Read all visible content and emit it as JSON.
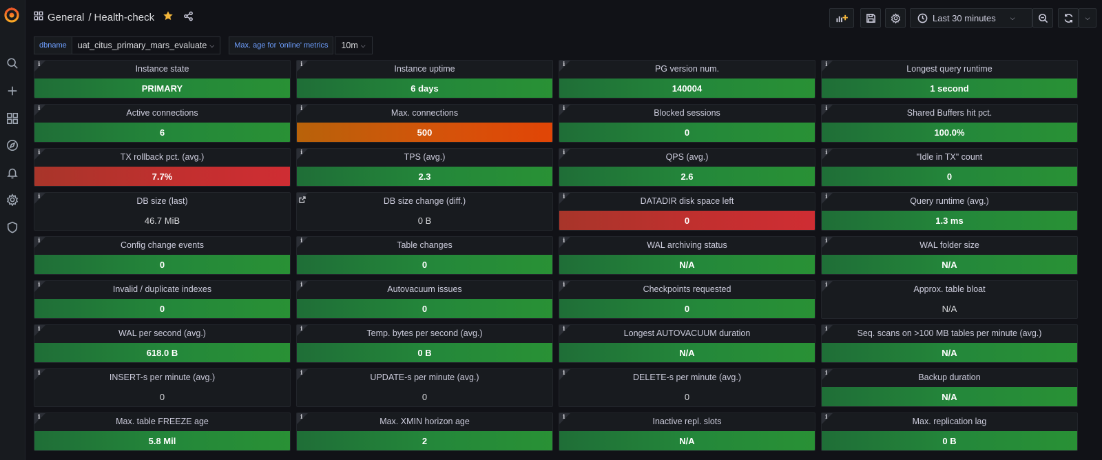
{
  "header": {
    "folder": "General",
    "separator": "/",
    "dashboard": "Health-check"
  },
  "toolbar": {
    "time_range": "Last 30 minutes"
  },
  "variables": [
    {
      "label": "dbname",
      "value": "uat_citus_primary_mars_evaluate"
    },
    {
      "label": "Max. age for 'online' metrics",
      "value": "10m"
    }
  ],
  "colors": {
    "green": "#299135",
    "orange": "#e14506",
    "red": "#cf2d33",
    "accent": "#6e9fff"
  },
  "panels": [
    {
      "title": "Instance state",
      "value": "PRIMARY",
      "color": "green"
    },
    {
      "title": "Instance uptime",
      "value": "6 days",
      "color": "green"
    },
    {
      "title": "PG version num.",
      "value": "140004",
      "color": "green"
    },
    {
      "title": "Longest query runtime",
      "value": "1 second",
      "color": "green"
    },
    {
      "title": "Active connections",
      "value": "6",
      "color": "green"
    },
    {
      "title": "Max. connections",
      "value": "500",
      "color": "orange"
    },
    {
      "title": "Blocked sessions",
      "value": "0",
      "color": "green"
    },
    {
      "title": "Shared Buffers hit pct.",
      "value": "100.0%",
      "color": "green"
    },
    {
      "title": "TX rollback pct. (avg.)",
      "value": "7.7%",
      "color": "red"
    },
    {
      "title": "TPS (avg.)",
      "value": "2.3",
      "color": "green"
    },
    {
      "title": "QPS (avg.)",
      "value": "2.6",
      "color": "green"
    },
    {
      "title": "\"Idle in TX\" count",
      "value": "0",
      "color": "green"
    },
    {
      "title": "DB size (last)",
      "value": "46.7 MiB",
      "color": "none"
    },
    {
      "title": "DB size change (diff.)",
      "value": "0 B",
      "color": "none",
      "link": true
    },
    {
      "title": "DATADIR disk space left",
      "value": "0",
      "color": "red"
    },
    {
      "title": "Query runtime (avg.)",
      "value": "1.3 ms",
      "color": "green"
    },
    {
      "title": "Config change events",
      "value": "0",
      "color": "green"
    },
    {
      "title": "Table changes",
      "value": "0",
      "color": "green"
    },
    {
      "title": "WAL archiving status",
      "value": "N/A",
      "color": "green"
    },
    {
      "title": "WAL folder size",
      "value": "N/A",
      "color": "green"
    },
    {
      "title": "Invalid / duplicate indexes",
      "value": "0",
      "color": "green"
    },
    {
      "title": "Autovacuum issues",
      "value": "0",
      "color": "green"
    },
    {
      "title": "Checkpoints requested",
      "value": "0",
      "color": "green"
    },
    {
      "title": "Approx. table bloat",
      "value": "N/A",
      "color": "none"
    },
    {
      "title": "WAL per second (avg.)",
      "value": "618.0 B",
      "color": "green"
    },
    {
      "title": "Temp. bytes per second (avg.)",
      "value": "0 B",
      "color": "green"
    },
    {
      "title": "Longest AUTOVACUUM duration",
      "value": "N/A",
      "color": "green"
    },
    {
      "title": "Seq. scans on >100 MB tables per minute (avg.)",
      "value": "N/A",
      "color": "green"
    },
    {
      "title": "INSERT-s per minute (avg.)",
      "value": "0",
      "color": "none"
    },
    {
      "title": "UPDATE-s per minute (avg.)",
      "value": "0",
      "color": "none"
    },
    {
      "title": "DELETE-s per minute (avg.)",
      "value": "0",
      "color": "none"
    },
    {
      "title": "Backup duration",
      "value": "N/A",
      "color": "green"
    },
    {
      "title": "Max. table FREEZE age",
      "value": "5.8 Mil",
      "color": "green"
    },
    {
      "title": "Max. XMIN horizon age",
      "value": "2",
      "color": "green"
    },
    {
      "title": "Inactive repl. slots",
      "value": "N/A",
      "color": "green"
    },
    {
      "title": "Max. replication lag",
      "value": "0 B",
      "color": "green"
    }
  ]
}
